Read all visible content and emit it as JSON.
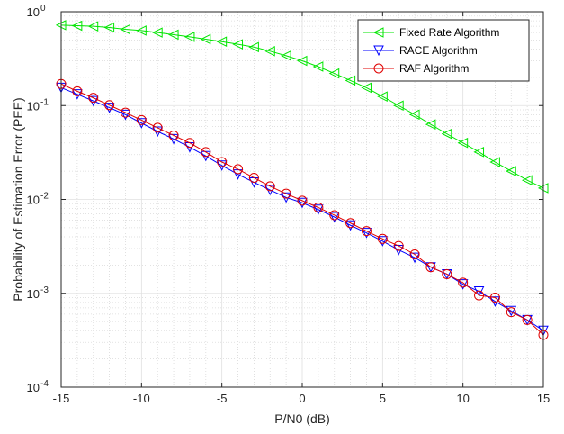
{
  "chart_data": {
    "type": "line",
    "xlabel": "P/N0 (dB)",
    "ylabel": "Probability of Estimation Error (PEE)",
    "xlim": [
      -15,
      15
    ],
    "ylim": [
      0.0001,
      1
    ],
    "yscale": "log",
    "grid": true,
    "minor_grid": true,
    "legend_position": "top-right",
    "x_ticks": [
      -15,
      -10,
      -5,
      0,
      5,
      10,
      15
    ],
    "y_ticks": [
      0.0001,
      0.001,
      0.01,
      0.1,
      1
    ],
    "y_tick_labels": [
      {
        "base": "10",
        "exp": "-4"
      },
      {
        "base": "10",
        "exp": "-3"
      },
      {
        "base": "10",
        "exp": "-2"
      },
      {
        "base": "10",
        "exp": "-1"
      },
      {
        "base": "10",
        "exp": "0"
      }
    ],
    "x": [
      -15,
      -14,
      -13,
      -12,
      -11,
      -10,
      -9,
      -8,
      -7,
      -6,
      -5,
      -4,
      -3,
      -2,
      -1,
      0,
      1,
      2,
      3,
      4,
      5,
      6,
      7,
      8,
      9,
      10,
      11,
      12,
      13,
      14,
      15
    ],
    "series": [
      {
        "name": "Fixed Rate Algorithm",
        "color": "#00e600",
        "marker": "triangle-left",
        "values": [
          0.72,
          0.71,
          0.7,
          0.68,
          0.65,
          0.63,
          0.6,
          0.57,
          0.54,
          0.51,
          0.48,
          0.45,
          0.42,
          0.38,
          0.34,
          0.3,
          0.26,
          0.22,
          0.185,
          0.155,
          0.125,
          0.1,
          0.08,
          0.063,
          0.05,
          0.04,
          0.032,
          0.025,
          0.02,
          0.016,
          0.0132
        ]
      },
      {
        "name": "RACE Algorithm",
        "color": "#0000ff",
        "marker": "triangle-down",
        "values": [
          0.155,
          0.132,
          0.112,
          0.095,
          0.08,
          0.065,
          0.053,
          0.044,
          0.036,
          0.029,
          0.023,
          0.0185,
          0.0152,
          0.0126,
          0.0105,
          0.0092,
          0.0078,
          0.0065,
          0.0053,
          0.0044,
          0.0036,
          0.0029,
          0.0024,
          0.0019,
          0.0016,
          0.00125,
          0.00105,
          0.00082,
          0.00065,
          0.00052,
          0.0004
        ]
      },
      {
        "name": "RAF Algorithm",
        "color": "#e00000",
        "marker": "circle",
        "values": [
          0.17,
          0.142,
          0.121,
          0.101,
          0.084,
          0.07,
          0.058,
          0.048,
          0.04,
          0.032,
          0.025,
          0.021,
          0.017,
          0.0138,
          0.0115,
          0.0097,
          0.0082,
          0.0068,
          0.0056,
          0.0046,
          0.0038,
          0.0032,
          0.0026,
          0.0019,
          0.0016,
          0.0013,
          0.00095,
          0.0009,
          0.00063,
          0.00052,
          0.00036
        ]
      }
    ]
  }
}
